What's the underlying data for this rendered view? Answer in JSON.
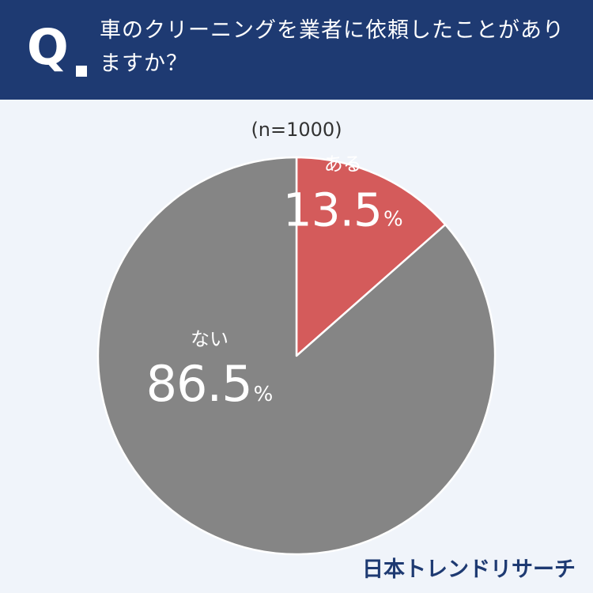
{
  "header": {
    "q_label": "Q",
    "question": "車のクリーニングを業者に依頼したことがありますか？"
  },
  "sample_size": "(n=1000)",
  "brand": "日本トレンドリサーチ",
  "colors": {
    "header_bg": "#1e3a72",
    "background": "#f0f4fa",
    "slice_yes": "#d45b5b",
    "slice_no": "#858585"
  },
  "chart_data": {
    "type": "pie",
    "start": "12 o'clock",
    "direction": "clockwise",
    "slices": [
      {
        "label": "ある",
        "value": 13.5,
        "display": "13.5",
        "unit": "%",
        "color": "#d45b5b"
      },
      {
        "label": "ない",
        "value": 86.5,
        "display": "86.5",
        "unit": "%",
        "color": "#858585"
      }
    ]
  }
}
